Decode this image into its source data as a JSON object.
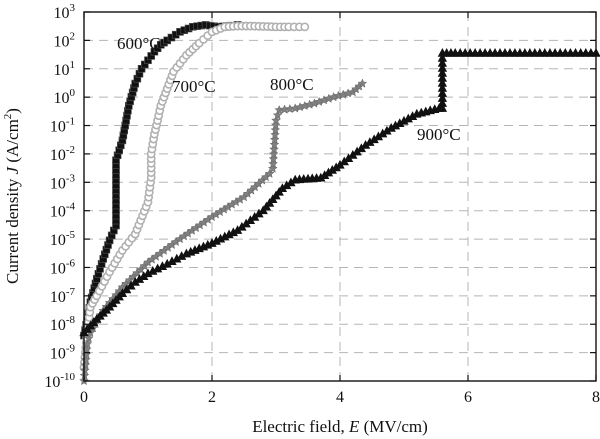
{
  "chart_data": {
    "type": "line",
    "x_scale": "linear",
    "y_scale": "log",
    "xlim": [
      0,
      8
    ],
    "ylim": [
      1e-10,
      1000
    ],
    "grid": true,
    "xlabel_parts": [
      "Electric field, ",
      "E",
      " (MV/cm)"
    ],
    "ylabel_parts": [
      "Current density ",
      "J",
      " (A/cm",
      "2",
      ")"
    ],
    "x_ticks": [
      0,
      2,
      4,
      6,
      8
    ],
    "x_tick_labels": [
      "0",
      "2",
      "4",
      "6",
      "8"
    ],
    "y_tick_exponents": [
      -10,
      -9,
      -8,
      -7,
      -6,
      -5,
      -4,
      -3,
      -2,
      -1,
      0,
      1,
      2,
      3
    ],
    "y_tick_base": "10",
    "series": [
      {
        "name": "600°C",
        "color": "#111111",
        "marker": "square",
        "x": [
          0,
          0.05,
          0.1,
          0.2,
          0.3,
          0.4,
          0.5,
          0.5,
          0.6,
          0.7,
          0.8,
          0.9,
          1.0,
          1.1,
          1.2,
          1.3,
          1.5,
          1.7,
          1.9,
          2.1,
          2.3,
          2.4
        ],
        "y": [
          4e-09,
          1.5e-08,
          6e-08,
          4e-07,
          2e-06,
          9e-06,
          3e-05,
          0.006,
          0.03,
          0.5,
          3,
          10,
          20,
          40,
          70,
          100,
          200,
          300,
          350,
          300,
          330,
          350
        ]
      },
      {
        "name": "700°C",
        "color": "#b0b0b0",
        "marker": "circle",
        "x": [
          0,
          0.05,
          0.1,
          0.2,
          0.4,
          0.6,
          0.8,
          1.0,
          1.05,
          1.05,
          1.1,
          1.15,
          1.2,
          1.3,
          1.4,
          1.6,
          1.8,
          2.0,
          2.2,
          2.4,
          2.6,
          2.8,
          3.0,
          3.2,
          3.45
        ],
        "y": [
          3e-10,
          5e-09,
          4e-08,
          1e-07,
          7e-07,
          4e-06,
          1.5e-05,
          0.0002,
          0.0015,
          0.01,
          0.05,
          0.15,
          0.5,
          2,
          8,
          30,
          80,
          200,
          300,
          320,
          320,
          310,
          300,
          300,
          300
        ]
      },
      {
        "name": "800°C",
        "color": "#808080",
        "marker": "star",
        "x": [
          0,
          0.05,
          0.1,
          0.3,
          0.6,
          1.0,
          1.5,
          2.0,
          2.5,
          2.9,
          2.95,
          3.0,
          3.05,
          3.3,
          3.6,
          3.9,
          4.2,
          4.35
        ],
        "y": [
          1e-10,
          2e-09,
          5e-09,
          3e-08,
          2e-07,
          1.5e-06,
          1e-05,
          6e-05,
          0.0003,
          0.002,
          0.003,
          0.15,
          0.35,
          0.4,
          0.6,
          1.0,
          1.5,
          3
        ]
      },
      {
        "name": "900°C",
        "color": "#111111",
        "marker": "triangle",
        "x": [
          0,
          0.2,
          0.4,
          0.6,
          0.8,
          1.0,
          1.3,
          1.6,
          2.0,
          2.4,
          2.8,
          3.1,
          3.3,
          3.5,
          3.7,
          4.0,
          4.4,
          4.8,
          5.2,
          5.55,
          5.6,
          5.6,
          5.8,
          6.5,
          7.2,
          8.0
        ],
        "y": [
          5e-09,
          1.5e-08,
          4e-08,
          1.2e-07,
          3e-07,
          6e-07,
          1.3e-06,
          3e-06,
          7e-06,
          2e-05,
          0.0001,
          0.0006,
          0.0012,
          0.0013,
          0.0014,
          0.004,
          0.02,
          0.08,
          0.25,
          0.4,
          0.4,
          35,
          35,
          35,
          35,
          35
        ]
      }
    ]
  }
}
